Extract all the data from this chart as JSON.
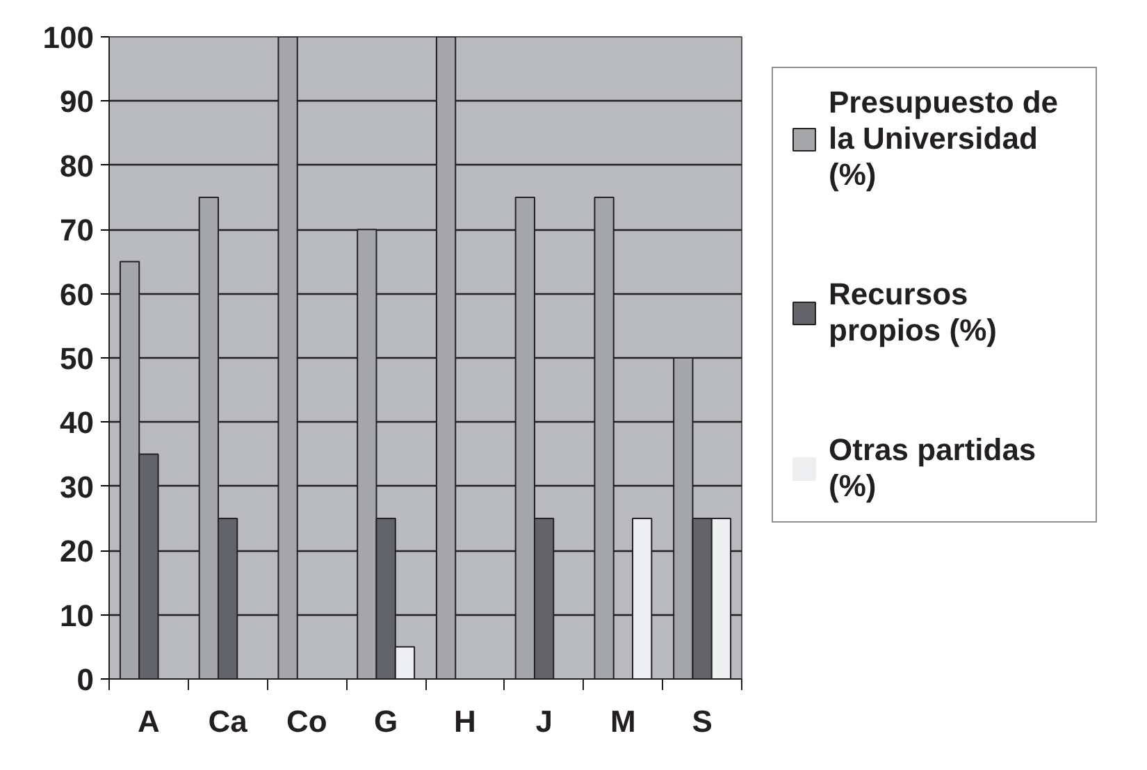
{
  "chart_data": {
    "type": "bar",
    "categories": [
      "A",
      "Ca",
      "Co",
      "G",
      "H",
      "J",
      "M",
      "S"
    ],
    "series": [
      {
        "name": "Presupuesto de la Universidad (%)",
        "color": "#a5a6a9",
        "values": [
          65,
          75,
          100,
          70,
          100,
          75,
          75,
          50
        ]
      },
      {
        "name": "Recursos propios (%)",
        "color": "#636469",
        "values": [
          35,
          25,
          0,
          25,
          0,
          25,
          0,
          25
        ]
      },
      {
        "name": "Otras partidas (%)",
        "color": "#eeeff1",
        "values": [
          0,
          0,
          0,
          5,
          0,
          0,
          25,
          25
        ]
      }
    ],
    "ylim": [
      0,
      100
    ],
    "yticks": [
      0,
      10,
      20,
      30,
      40,
      50,
      60,
      70,
      80,
      90,
      100
    ],
    "grid": "y",
    "legend": "right"
  }
}
